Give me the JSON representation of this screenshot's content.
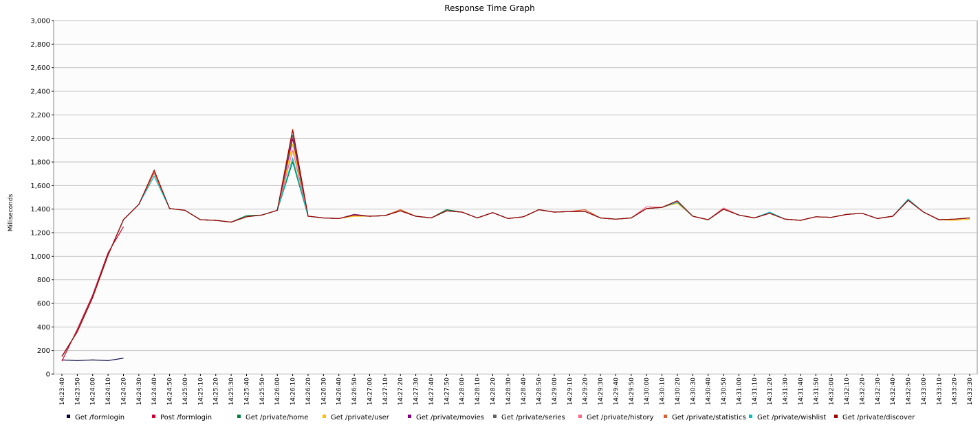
{
  "chart_data": {
    "type": "line",
    "title": "Response Time Graph",
    "y_label": "Milliseconds",
    "categories": [
      "14:23:40",
      "14:23:50",
      "14:24:00",
      "14:24:10",
      "14:24:20",
      "14:24:30",
      "14:24:40",
      "14:24:50",
      "14:25:00",
      "14:25:10",
      "14:25:20",
      "14:25:30",
      "14:25:40",
      "14:25:50",
      "14:26:00",
      "14:26:10",
      "14:26:20",
      "14:26:30",
      "14:26:40",
      "14:26:50",
      "14:27:00",
      "14:27:10",
      "14:27:20",
      "14:27:30",
      "14:27:40",
      "14:27:50",
      "14:28:00",
      "14:28:10",
      "14:28:20",
      "14:28:30",
      "14:28:40",
      "14:28:50",
      "14:29:00",
      "14:29:10",
      "14:29:20",
      "14:29:30",
      "14:29:40",
      "14:29:50",
      "14:30:00",
      "14:30:10",
      "14:30:20",
      "14:30:30",
      "14:30:40",
      "14:30:50",
      "14:31:00",
      "14:31:10",
      "14:31:20",
      "14:31:30",
      "14:31:40",
      "14:31:50",
      "14:32:00",
      "14:32:10",
      "14:32:20",
      "14:32:30",
      "14:32:40",
      "14:32:50",
      "14:33:00",
      "14:33:10",
      "14:33:20",
      "14:33:30"
    ],
    "ylim": [
      0,
      3000
    ],
    "yticks": [
      0,
      200,
      400,
      600,
      800,
      {
        "value": 1000,
        "label": "1,000"
      },
      {
        "value": 1200,
        "label": "1,200"
      },
      {
        "value": 1400,
        "label": "1,400"
      },
      {
        "value": 1600,
        "label": "1,600"
      },
      {
        "value": 1800,
        "label": "1,800"
      },
      {
        "value": 2000,
        "label": "2,000"
      },
      {
        "value": 2200,
        "label": "2,200"
      },
      {
        "value": 2400,
        "label": "2,400"
      },
      {
        "value": 2600,
        "label": "2,600"
      },
      {
        "value": 2800,
        "label": "2,800"
      },
      {
        "value": 3000,
        "label": "3,000"
      }
    ],
    "grid": true,
    "legend": "bottom",
    "series": [
      {
        "name": "Get /formlogin",
        "color": "#000040",
        "values": [
          120,
          115,
          120,
          115,
          135,
          null,
          null,
          null,
          null,
          null,
          null,
          null,
          null,
          null,
          null,
          null,
          null,
          null,
          null,
          null,
          null,
          null,
          null,
          null,
          null,
          null,
          null,
          null,
          null,
          null,
          null,
          null,
          null,
          null,
          null,
          null,
          null,
          null,
          null,
          null,
          null,
          null,
          null,
          null,
          null,
          null,
          null,
          null,
          null,
          null,
          null,
          null,
          null,
          null,
          null,
          null,
          null,
          null,
          null,
          null
        ]
      },
      {
        "name": "Post /formlogin",
        "color": "#cc0033",
        "values": [
          110,
          380,
          670,
          1030,
          1250,
          null,
          null,
          null,
          null,
          null,
          null,
          null,
          null,
          null,
          null,
          null,
          null,
          null,
          null,
          null,
          null,
          null,
          null,
          null,
          null,
          null,
          null,
          null,
          null,
          null,
          null,
          null,
          null,
          null,
          null,
          null,
          null,
          null,
          null,
          null,
          null,
          null,
          null,
          null,
          null,
          null,
          null,
          null,
          null,
          null,
          null,
          null,
          null,
          null,
          null,
          null,
          null,
          null,
          null,
          null
        ]
      },
      {
        "name": "Get /private/home",
        "color": "#008040",
        "values": [
          150,
          360,
          650,
          1010,
          1310,
          1440,
          1710,
          1405,
          1390,
          1310,
          1305,
          1290,
          1345,
          1350,
          1390,
          1800,
          1340,
          1325,
          1320,
          1350,
          1340,
          1345,
          1385,
          1340,
          1325,
          1395,
          1375,
          1325,
          1370,
          1320,
          1335,
          1395,
          1375,
          1380,
          1380,
          1325,
          1315,
          1325,
          1405,
          1415,
          1460,
          1340,
          1310,
          1400,
          1350,
          1325,
          1365,
          1315,
          1305,
          1335,
          1330,
          1355,
          1365,
          1320,
          1340,
          1475,
          1375,
          1310,
          1315,
          1325
        ]
      },
      {
        "name": "Get /private/user",
        "color": "#ffbf00",
        "values": [
          150,
          360,
          650,
          1010,
          1310,
          1440,
          1710,
          1405,
          1390,
          1310,
          1305,
          1290,
          1335,
          1350,
          1390,
          1950,
          1340,
          1325,
          1320,
          1340,
          1340,
          1345,
          1395,
          1340,
          1325,
          1385,
          1375,
          1325,
          1370,
          1320,
          1335,
          1395,
          1375,
          1380,
          1380,
          1325,
          1315,
          1325,
          1405,
          1415,
          1450,
          1340,
          1310,
          1400,
          1350,
          1325,
          1365,
          1315,
          1305,
          1335,
          1330,
          1355,
          1365,
          1320,
          1340,
          1475,
          1375,
          1310,
          1305,
          1315
        ]
      },
      {
        "name": "Get /private/movies",
        "color": "#800080",
        "values": [
          150,
          360,
          650,
          1010,
          1310,
          1440,
          1710,
          1405,
          1390,
          1310,
          1305,
          1290,
          1335,
          1350,
          1390,
          2000,
          1340,
          1325,
          1320,
          1355,
          1340,
          1345,
          1385,
          1340,
          1325,
          1385,
          1375,
          1325,
          1370,
          1320,
          1335,
          1395,
          1375,
          1380,
          1380,
          1325,
          1315,
          1325,
          1405,
          1415,
          1460,
          1340,
          1310,
          1400,
          1350,
          1325,
          1365,
          1315,
          1305,
          1335,
          1330,
          1355,
          1365,
          1320,
          1340,
          1475,
          1375,
          1310,
          1315,
          1325
        ]
      },
      {
        "name": "Get /private/series",
        "color": "#606060",
        "values": [
          150,
          360,
          650,
          1010,
          1310,
          1440,
          1710,
          1405,
          1390,
          1310,
          1305,
          1290,
          1335,
          1350,
          1390,
          2030,
          1340,
          1325,
          1320,
          1350,
          1340,
          1345,
          1385,
          1340,
          1325,
          1385,
          1375,
          1325,
          1370,
          1320,
          1335,
          1395,
          1375,
          1380,
          1380,
          1325,
          1315,
          1325,
          1405,
          1415,
          1460,
          1340,
          1310,
          1400,
          1350,
          1325,
          1365,
          1315,
          1305,
          1335,
          1330,
          1355,
          1365,
          1320,
          1340,
          1475,
          1375,
          1310,
          1315,
          1325
        ]
      },
      {
        "name": "Get /private/history",
        "color": "#ff6680",
        "values": [
          150,
          360,
          650,
          1010,
          1310,
          1440,
          1710,
          1405,
          1390,
          1310,
          1305,
          1290,
          1335,
          1350,
          1390,
          1900,
          1340,
          1325,
          1320,
          1350,
          1340,
          1345,
          1385,
          1340,
          1325,
          1385,
          1375,
          1325,
          1370,
          1320,
          1335,
          1395,
          1375,
          1380,
          1380,
          1325,
          1315,
          1325,
          1420,
          1415,
          1460,
          1340,
          1310,
          1410,
          1350,
          1325,
          1365,
          1315,
          1305,
          1335,
          1330,
          1355,
          1365,
          1320,
          1340,
          1475,
          1375,
          1310,
          1315,
          1325
        ]
      },
      {
        "name": "Get /private/statistics",
        "color": "#e06030",
        "values": [
          150,
          360,
          650,
          1010,
          1310,
          1440,
          1710,
          1405,
          1390,
          1310,
          1305,
          1290,
          1335,
          1350,
          1390,
          2080,
          1340,
          1325,
          1320,
          1350,
          1340,
          1345,
          1395,
          1340,
          1325,
          1385,
          1375,
          1325,
          1370,
          1320,
          1335,
          1395,
          1375,
          1380,
          1395,
          1325,
          1315,
          1325,
          1405,
          1415,
          1460,
          1340,
          1310,
          1400,
          1350,
          1325,
          1365,
          1315,
          1305,
          1335,
          1330,
          1355,
          1365,
          1320,
          1340,
          1475,
          1375,
          1310,
          1315,
          1325
        ]
      },
      {
        "name": "Get /private/wishlist",
        "color": "#00c0c0",
        "values": [
          150,
          360,
          650,
          1010,
          1310,
          1440,
          1680,
          1405,
          1390,
          1310,
          1305,
          1290,
          1335,
          1350,
          1390,
          1830,
          1340,
          1325,
          1320,
          1350,
          1340,
          1345,
          1385,
          1340,
          1325,
          1385,
          1375,
          1325,
          1370,
          1320,
          1335,
          1395,
          1375,
          1380,
          1380,
          1325,
          1315,
          1325,
          1405,
          1415,
          1460,
          1340,
          1310,
          1400,
          1350,
          1325,
          1375,
          1315,
          1305,
          1335,
          1330,
          1355,
          1365,
          1320,
          1340,
          1485,
          1375,
          1310,
          1315,
          1325
        ]
      },
      {
        "name": "Get /private/discover",
        "color": "#a00000",
        "values": [
          150,
          360,
          650,
          1010,
          1310,
          1440,
          1730,
          1405,
          1390,
          1310,
          1305,
          1290,
          1335,
          1350,
          1390,
          2070,
          1340,
          1325,
          1320,
          1350,
          1340,
          1345,
          1385,
          1340,
          1325,
          1385,
          1375,
          1325,
          1370,
          1320,
          1335,
          1395,
          1375,
          1380,
          1380,
          1325,
          1315,
          1325,
          1405,
          1415,
          1470,
          1340,
          1310,
          1400,
          1350,
          1325,
          1365,
          1315,
          1305,
          1335,
          1330,
          1355,
          1365,
          1320,
          1340,
          1475,
          1375,
          1310,
          1315,
          1325
        ]
      }
    ]
  }
}
